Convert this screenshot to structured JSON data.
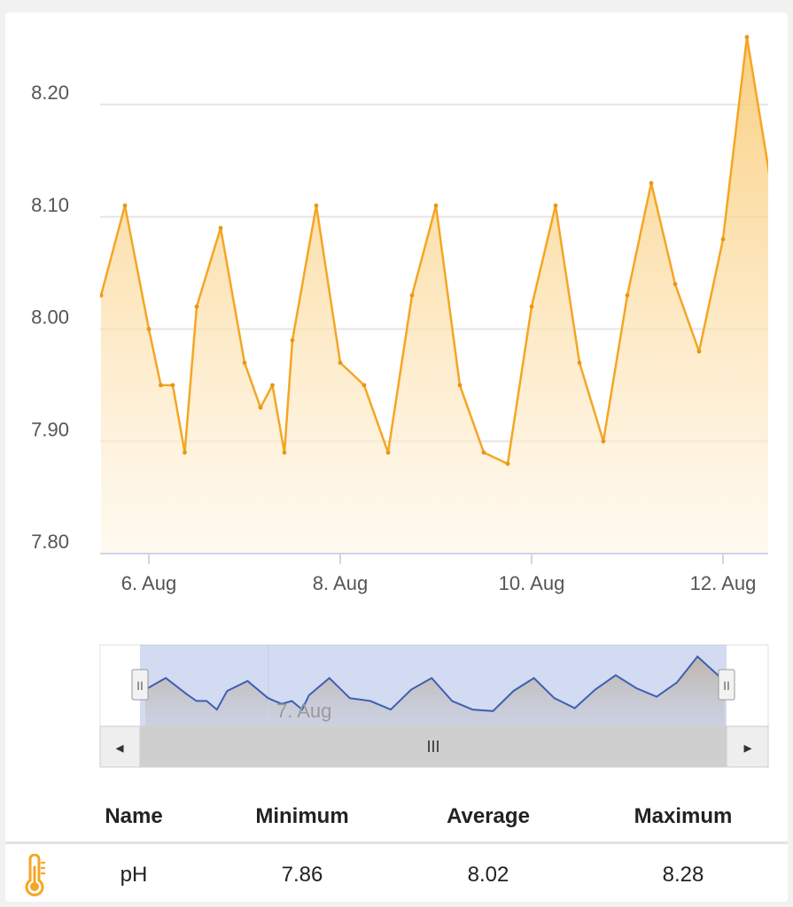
{
  "chart_data": {
    "type": "area",
    "title": "",
    "xlabel": "",
    "ylabel": "",
    "x_tick_labels": [
      "6. Aug",
      "8. Aug",
      "10. Aug",
      "12. Aug"
    ],
    "y_tick_labels": [
      "8.20",
      "8.10",
      "8.00",
      "7.90",
      "7.80"
    ],
    "ylim": [
      7.8,
      8.2
    ],
    "grid": true,
    "legend": "none",
    "series": [
      {
        "x": [
          "2023-08-05 12:00",
          "2023-08-05 18:00",
          "2023-08-06 00:00",
          "2023-08-06 03:00",
          "2023-08-06 06:00",
          "2023-08-06 09:00",
          "2023-08-06 12:00",
          "2023-08-06 18:00",
          "2023-08-07 00:00",
          "2023-08-07 04:00",
          "2023-08-07 07:00",
          "2023-08-07 10:00",
          "2023-08-07 12:00",
          "2023-08-07 18:00",
          "2023-08-08 00:00",
          "2023-08-08 06:00",
          "2023-08-08 12:00",
          "2023-08-08 18:00",
          "2023-08-09 00:00",
          "2023-08-09 06:00",
          "2023-08-09 12:00",
          "2023-08-09 18:00",
          "2023-08-10 00:00",
          "2023-08-10 06:00",
          "2023-08-10 12:00",
          "2023-08-10 18:00",
          "2023-08-11 00:00",
          "2023-08-11 06:00",
          "2023-08-11 12:00",
          "2023-08-11 18:00",
          "2023-08-12 00:00",
          "2023-08-12 06:00",
          "2023-08-12 12:00",
          "2023-08-12 14:00"
        ],
        "values": [
          8.03,
          8.11,
          8.0,
          7.95,
          7.95,
          7.89,
          8.02,
          8.09,
          7.97,
          7.93,
          7.95,
          7.89,
          7.99,
          8.11,
          7.97,
          7.95,
          7.89,
          8.03,
          8.11,
          7.95,
          7.89,
          7.88,
          8.02,
          8.11,
          7.97,
          7.9,
          8.03,
          8.13,
          8.04,
          7.98,
          8.08,
          8.26,
          8.13,
          8.05
        ]
      }
    ],
    "values_range": [
      7.86,
      8.28
    ]
  },
  "navigator": {
    "x_tick_label": "7. Aug",
    "handle_grip": "II",
    "scrollbar_grip": "III",
    "left_arrow": "◂",
    "right_arrow": "▸"
  },
  "stats": {
    "headers": {
      "name": "Name",
      "min": "Minimum",
      "avg": "Average",
      "max": "Maximum"
    },
    "row": {
      "icon": "thermometer-icon",
      "name": "pH",
      "min": "7.86",
      "avg": "8.02",
      "max": "8.28"
    }
  },
  "colors": {
    "series": "#f5a623",
    "navigator_line": "#3f5fb3",
    "navigator_mask": "#c9d4ee"
  }
}
